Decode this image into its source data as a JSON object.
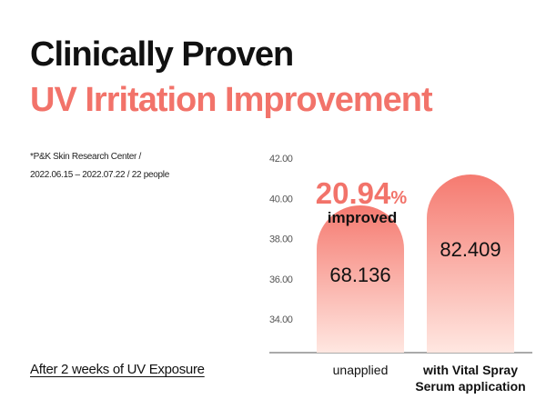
{
  "header": {
    "title": "Clinically Proven",
    "subtitle": "UV Irritation Improvement"
  },
  "source": {
    "line1": "*P&K Skin Research Center /",
    "line2": "2022.06.15 – 2022.07.22 / 22 people"
  },
  "footnote": "After 2 weeks of UV Exposure",
  "callout": {
    "value": "20.94",
    "unit": "%",
    "label": "improved"
  },
  "colors": {
    "accent": "#F2736A",
    "bar_top": "#F57A70",
    "bar_bottom": "#FFE7E1",
    "axis": "#555555"
  },
  "chart_data": {
    "type": "bar",
    "categories": [
      "unapplied",
      "with Vital Spray Serum application"
    ],
    "category_lines": [
      [
        "unapplied"
      ],
      [
        "with Vital Spray",
        "Serum application"
      ]
    ],
    "values": [
      68.136,
      82.409
    ],
    "value_labels": [
      "68.136",
      "82.409"
    ],
    "y_ticks": [
      "34.00",
      "36.00",
      "38.00",
      "40.00",
      "42.00"
    ],
    "y_tick_values": [
      34,
      36,
      38,
      40,
      42
    ],
    "grid": false,
    "legend": "none",
    "note": "bar heights scaled to values (axis range does not match values)"
  }
}
